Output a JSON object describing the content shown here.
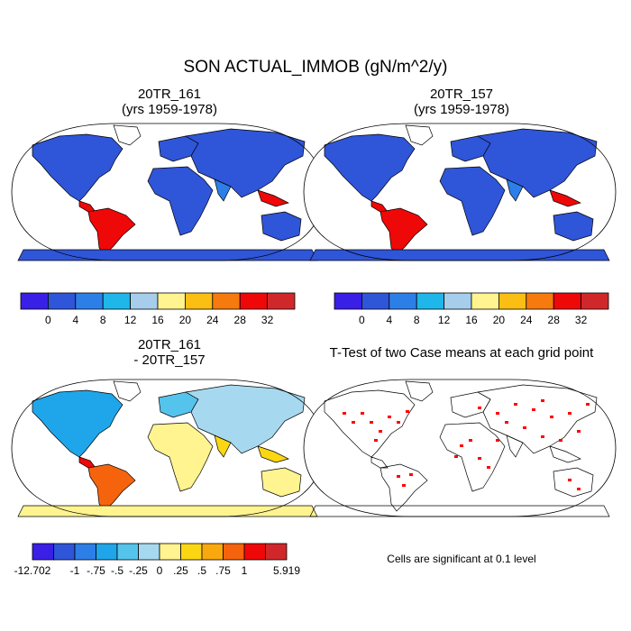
{
  "title": "SON ACTUAL_IMMOB (gN/m^2/y)",
  "panels": [
    {
      "title_line1": "20TR_161",
      "title_line2": "(yrs 1959-1978)"
    },
    {
      "title_line1": "20TR_157",
      "title_line2": "(yrs 1959-1978)"
    },
    {
      "title_line1": "20TR_161",
      "title_line2": "- 20TR_157"
    },
    {
      "title_line1": "T-Test of two Case means at each grid point",
      "title_line2": ""
    }
  ],
  "significance_note": "Cells are significant at 0.1 level",
  "chart_data": {
    "type": "heatmap",
    "projection": "Robinson",
    "colorbar_abs": {
      "colors": [
        "#3a1fe6",
        "#2f55d8",
        "#2d7fe8",
        "#1fb6ea",
        "#a6cdec",
        "#fff48f",
        "#fbbf13",
        "#f67a0e",
        "#ef0808",
        "#d0282a"
      ],
      "tick_labels": [
        "0",
        "4",
        "8",
        "12",
        "16",
        "20",
        "24",
        "28",
        "32"
      ]
    },
    "colorbar_diff": {
      "colors": [
        "#3a1fe6",
        "#2f55d8",
        "#2d7fe8",
        "#1fa6ea",
        "#55c4ec",
        "#a6d9f0",
        "#fff48f",
        "#fbd713",
        "#f9a80e",
        "#f5640d",
        "#ef0808",
        "#d0282a"
      ],
      "tick_labels": [
        "-12.702",
        "-1",
        "-.75",
        "-.5",
        "-.25",
        "0",
        ".25",
        ".5",
        ".75",
        "1",
        "5.919"
      ]
    },
    "significance_color": "#ff0000"
  }
}
